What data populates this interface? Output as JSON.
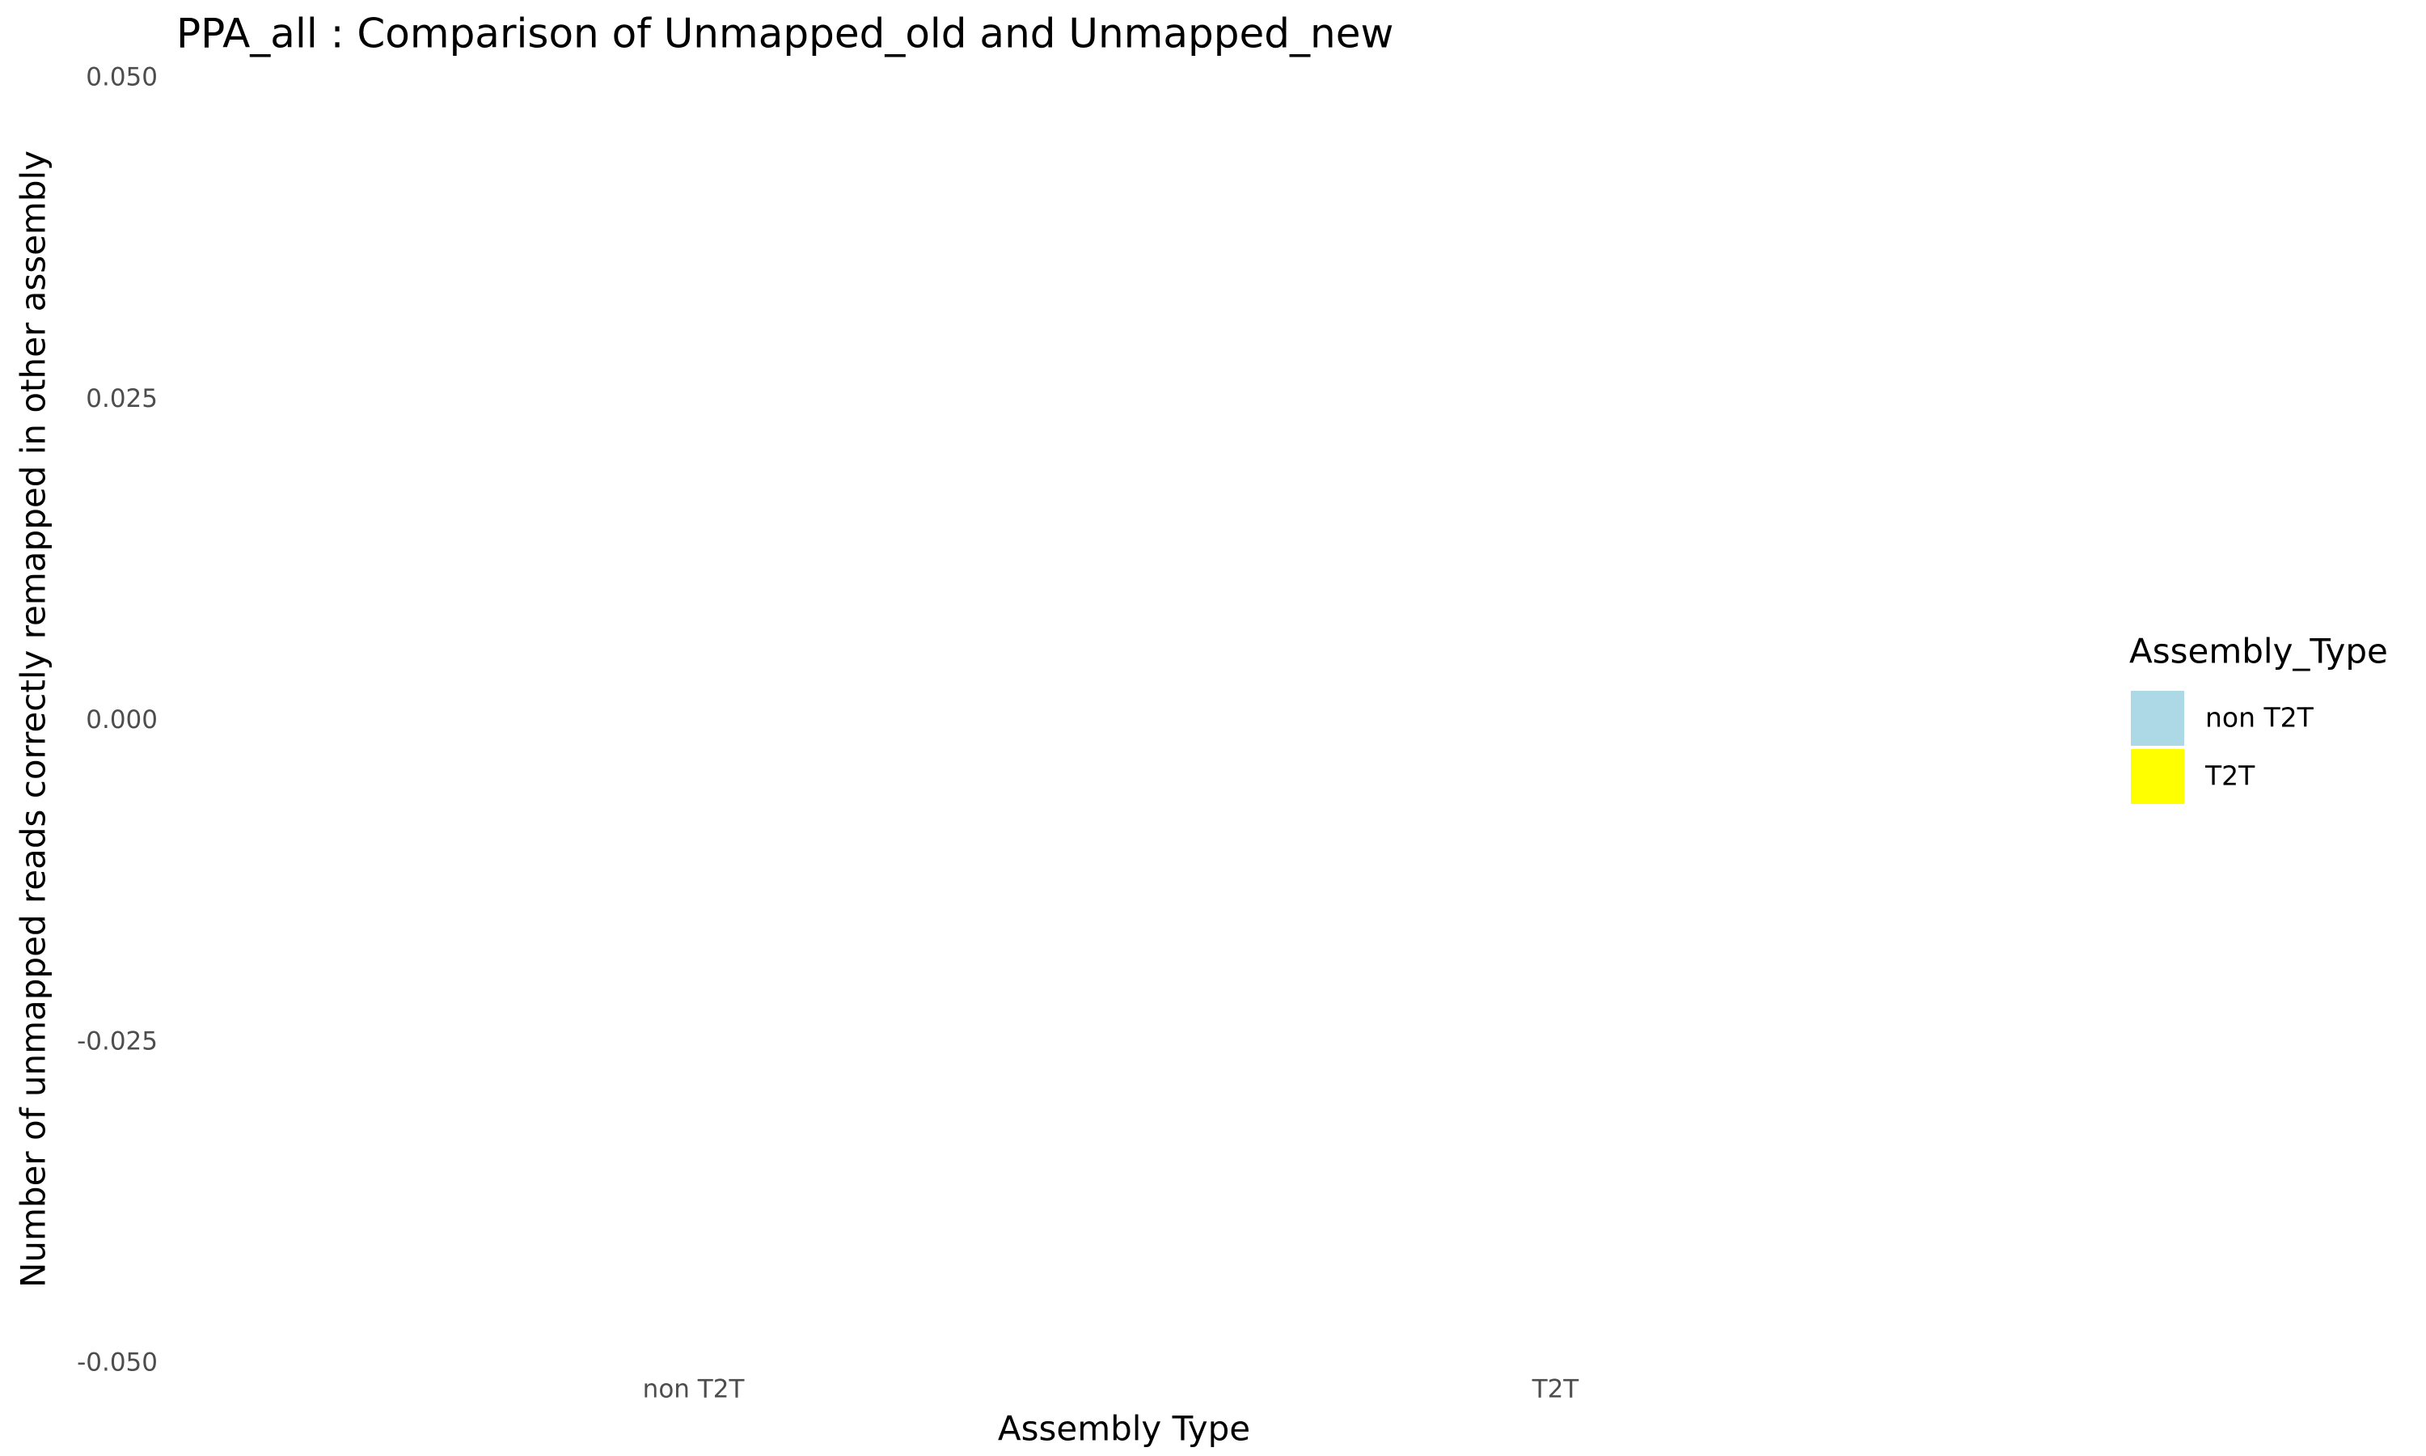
{
  "chart_data": {
    "type": "bar",
    "title": "PPA_all : Comparison of Unmapped_old and Unmapped_new",
    "x_label": "Assembly Type",
    "y_label": "Number of unmapped reads correctly remapped in other assembly",
    "legend_title": "Assembly_Type",
    "legend_position": "right",
    "categories": [
      "non T2T",
      "T2T"
    ],
    "series": [
      {
        "name": "non T2T",
        "color": "#add8e6",
        "values": [
          null,
          null
        ]
      },
      {
        "name": "T2T",
        "color": "#ffff00",
        "values": [
          null,
          null
        ]
      }
    ],
    "ylim": [
      -0.05,
      0.05
    ],
    "yticks": [
      {
        "value": -0.05,
        "label": "-0.050"
      },
      {
        "value": -0.025,
        "label": "-0.025"
      },
      {
        "value": 0,
        "label": "0.000"
      },
      {
        "value": 0.025,
        "label": "0.025"
      },
      {
        "value": 0.05,
        "label": "0.050"
      }
    ],
    "grid": false
  }
}
